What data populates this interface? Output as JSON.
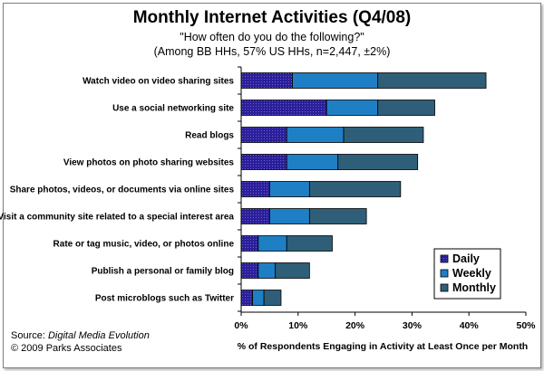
{
  "chart_data": {
    "type": "bar",
    "orientation": "horizontal",
    "stacked": true,
    "title": "Monthly Internet Activities (Q4/08)",
    "subtitle": "\"How often do you do the following?\"",
    "subtitle2": "(Among BB HHs, 57% US HHs, n=2,447, ±2%)",
    "xlabel": "% of Respondents Engaging in Activity at Least Once per Month",
    "ylabel": "",
    "xlim": [
      0,
      50
    ],
    "ticks": [
      "0%",
      "10%",
      "20%",
      "30%",
      "40%",
      "50%"
    ],
    "tick_values": [
      0,
      10,
      20,
      30,
      40,
      50
    ],
    "grid": false,
    "legend_position": "bottom-right",
    "categories": [
      "Watch video on video sharing sites",
      "Use a social networking site",
      "Read blogs",
      "View photos on photo sharing websites",
      "Share photos, videos, or documents via online sites",
      "Visit a community site related to a special interest area",
      "Rate or tag music, video, or photos online",
      "Publish a personal or family blog",
      "Post microblogs such as Twitter"
    ],
    "series": [
      {
        "name": "Daily",
        "color": "#2b1f99",
        "pattern": "dotted",
        "values": [
          9,
          15,
          8,
          8,
          5,
          5,
          3,
          3,
          2
        ]
      },
      {
        "name": "Weekly",
        "color": "#1f7fc4",
        "values": [
          15,
          9,
          10,
          9,
          7,
          7,
          5,
          3,
          2
        ]
      },
      {
        "name": "Monthly",
        "color": "#2f5f78",
        "values": [
          19,
          10,
          14,
          14,
          16,
          10,
          8,
          6,
          3
        ]
      }
    ]
  },
  "footer": {
    "source_prefix": "Source:  ",
    "source_name": "Digital Media Evolution",
    "copyright": "© 2009 Parks Associates"
  }
}
